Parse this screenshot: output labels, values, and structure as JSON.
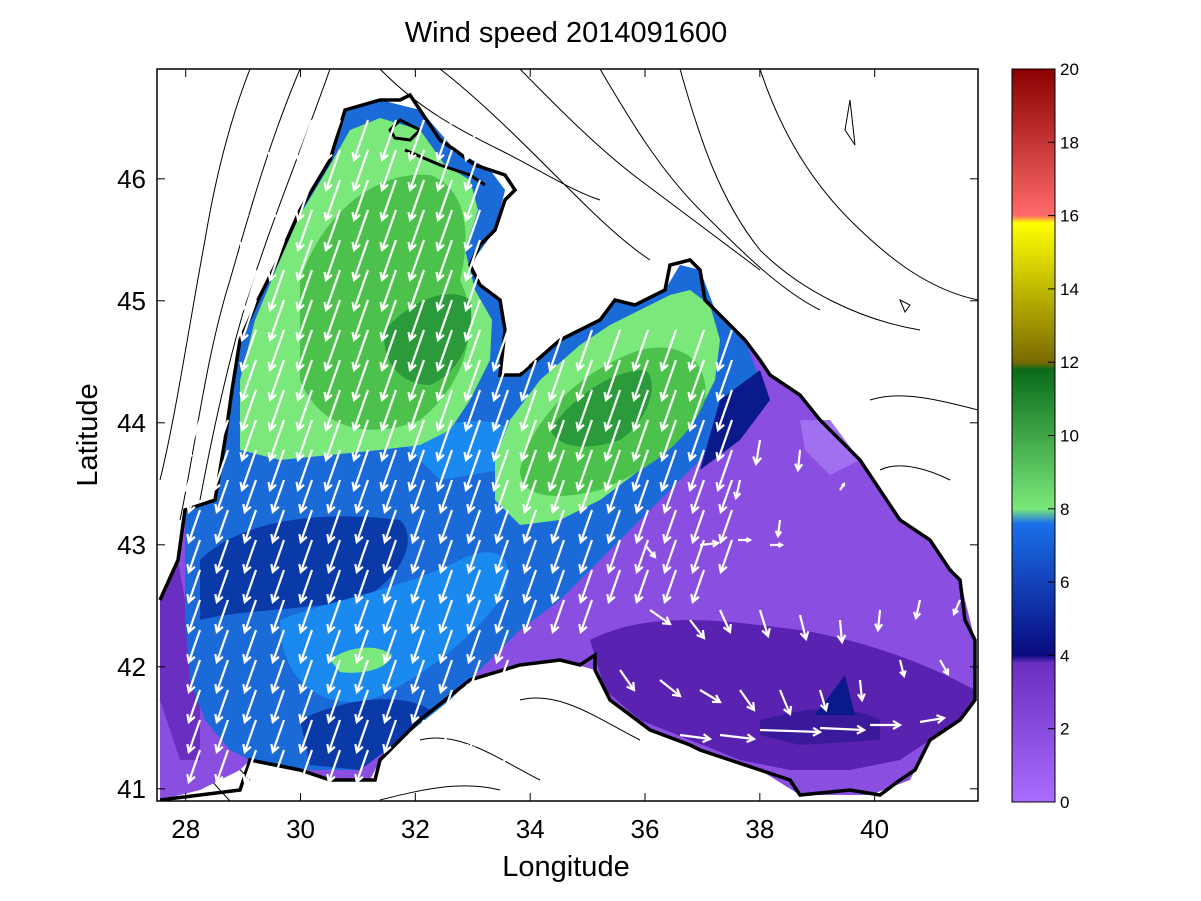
{
  "title": "Wind speed 2014091600",
  "xlabel": "Longitude",
  "ylabel": "Latitude",
  "chart_data": {
    "type": "heatmap",
    "title": "Wind speed 2014091600",
    "xlabel": "Longitude",
    "ylabel": "Latitude",
    "xlim": [
      27.5,
      41.8
    ],
    "ylim": [
      40.9,
      46.9
    ],
    "x_ticks": [
      28,
      30,
      32,
      34,
      36,
      38,
      40
    ],
    "y_ticks": [
      41,
      42,
      43,
      44,
      45,
      46
    ],
    "colorbar": {
      "range": [
        0,
        20
      ],
      "ticks": [
        0,
        2,
        4,
        6,
        8,
        10,
        12,
        14,
        16,
        18,
        20
      ],
      "bands": [
        {
          "from": 0,
          "to": 4,
          "color": "#8c4cd9"
        },
        {
          "from": 4,
          "to": 8,
          "color": "#1c66d9"
        },
        {
          "from": 8,
          "to": 12,
          "color": "#4cc24c"
        },
        {
          "from": 12,
          "to": 16,
          "color": "#9a9a10"
        },
        {
          "from": 16,
          "to": 20,
          "color": "#d83030"
        }
      ]
    },
    "regions": [
      {
        "name": "nw-high-wind-core",
        "speed_max": 11
      },
      {
        "name": "central-high-wind-core",
        "speed_max": 11
      },
      {
        "name": "east-calm-zone",
        "speed_min": 1
      }
    ]
  },
  "colors": {
    "purple_light": "#a070f0",
    "purple": "#8a4ee0",
    "purple_dark": "#6a2ec0",
    "indigo": "#3a1a9a",
    "navy": "#0a1a8a",
    "blue_dark": "#0a3aa8",
    "blue": "#1a6ad8",
    "blue_light": "#1a8af0",
    "green_light": "#7ae87a",
    "green": "#4cc24c",
    "green_dark": "#2a9a3a"
  }
}
